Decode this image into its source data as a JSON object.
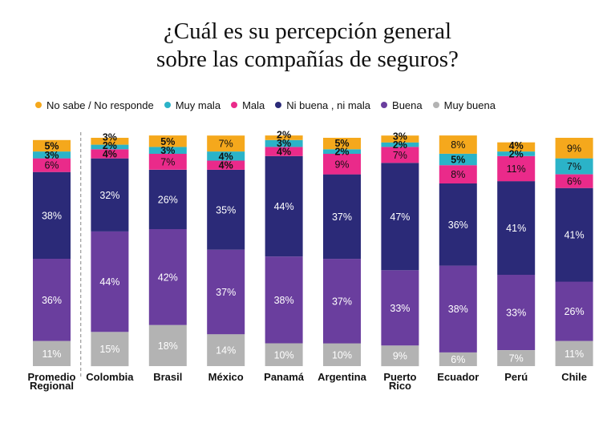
{
  "title_line_1": "¿Cuál es su percepción general",
  "title_line_2": "sobre las compañías de seguros?",
  "chart_data": {
    "type": "bar",
    "stacked": true,
    "title": "¿Cuál es su percepción general sobre las compañías de seguros?",
    "legend_position": "top",
    "categories": [
      "Promedio Regional",
      "Colombia",
      "Brasil",
      "México",
      "Panamá",
      "Argentina",
      "Puerto Rico",
      "Ecuador",
      "Perú",
      "Chile"
    ],
    "series": [
      {
        "name": "Muy buena",
        "color": "#b3b3b3",
        "values": [
          11,
          15,
          18,
          14,
          10,
          10,
          9,
          6,
          7,
          11
        ]
      },
      {
        "name": "Buena",
        "color": "#6a3e9e",
        "values": [
          36,
          44,
          42,
          37,
          38,
          37,
          33,
          38,
          33,
          26
        ]
      },
      {
        "name": "Ni buena , ni mala",
        "color": "#2b2a78",
        "values": [
          38,
          32,
          26,
          35,
          44,
          37,
          47,
          36,
          41,
          41
        ]
      },
      {
        "name": "Mala",
        "color": "#ea2a8a",
        "values": [
          6,
          4,
          7,
          4,
          4,
          9,
          7,
          8,
          11,
          6
        ]
      },
      {
        "name": "Muy mala",
        "color": "#2bb3c8",
        "values": [
          3,
          2,
          3,
          4,
          3,
          2,
          2,
          5,
          2,
          7
        ]
      },
      {
        "name": "No sabe / No responde",
        "color": "#f5a81c",
        "values": [
          5,
          3,
          5,
          7,
          2,
          5,
          3,
          8,
          4,
          9
        ]
      }
    ],
    "legend_order": [
      "No sabe / No responde",
      "Muy mala",
      "Mala",
      "Ni buena , ni mala",
      "Buena",
      "Muy buena"
    ],
    "value_suffix": "%",
    "grid": false,
    "separator_after_category": "Promedio Regional"
  }
}
